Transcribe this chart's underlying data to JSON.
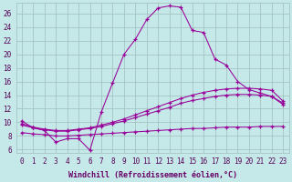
{
  "xlabel": "Windchill (Refroidissement éolien,°C)",
  "bg_color": "#c5e8e8",
  "grid_color": "#a0bcbc",
  "line_color": "#990099",
  "xlim": [
    -0.5,
    23.5
  ],
  "ylim": [
    5.5,
    27.5
  ],
  "xticks": [
    0,
    1,
    2,
    3,
    4,
    5,
    6,
    7,
    8,
    9,
    10,
    11,
    12,
    13,
    14,
    15,
    16,
    17,
    18,
    19,
    20,
    21,
    22,
    23
  ],
  "yticks": [
    6,
    8,
    10,
    12,
    14,
    16,
    18,
    20,
    22,
    24,
    26
  ],
  "curve1_x": [
    0,
    1,
    2,
    3,
    4,
    5,
    6,
    7,
    8,
    9,
    10,
    11,
    12,
    13,
    14,
    15,
    16,
    17,
    18,
    19,
    20,
    21,
    22,
    23
  ],
  "curve1_y": [
    10.2,
    9.2,
    8.8,
    7.1,
    7.6,
    7.6,
    5.9,
    11.5,
    15.8,
    20.0,
    22.2,
    25.1,
    26.8,
    27.1,
    26.9,
    23.5,
    23.2,
    19.3,
    18.4,
    16.0,
    14.8,
    14.3,
    13.8,
    12.8
  ],
  "curve2_x": [
    0,
    1,
    2,
    3,
    4,
    5,
    6,
    7,
    8,
    9,
    10,
    11,
    12,
    13,
    14,
    15,
    16,
    17,
    18,
    19,
    20,
    21,
    22,
    23
  ],
  "curve2_y": [
    9.8,
    9.3,
    9.0,
    8.8,
    8.8,
    9.0,
    9.2,
    9.6,
    10.0,
    10.5,
    11.1,
    11.7,
    12.3,
    12.9,
    13.5,
    14.0,
    14.4,
    14.7,
    14.9,
    15.0,
    15.0,
    14.9,
    14.7,
    13.1
  ],
  "curve3_x": [
    0,
    1,
    2,
    3,
    4,
    5,
    6,
    7,
    8,
    9,
    10,
    11,
    12,
    13,
    14,
    15,
    16,
    17,
    18,
    19,
    20,
    21,
    22,
    23
  ],
  "curve3_y": [
    9.6,
    9.2,
    8.9,
    8.7,
    8.7,
    8.9,
    9.1,
    9.4,
    9.8,
    10.2,
    10.7,
    11.2,
    11.7,
    12.2,
    12.8,
    13.2,
    13.5,
    13.8,
    14.0,
    14.1,
    14.1,
    14.0,
    13.8,
    12.6
  ],
  "curve4_x": [
    0,
    1,
    2,
    3,
    4,
    5,
    6,
    7,
    8,
    9,
    10,
    11,
    12,
    13,
    14,
    15,
    16,
    17,
    18,
    19,
    20,
    21,
    22,
    23
  ],
  "curve4_y": [
    8.5,
    8.3,
    8.2,
    8.0,
    8.0,
    8.1,
    8.2,
    8.3,
    8.4,
    8.5,
    8.6,
    8.7,
    8.8,
    8.9,
    9.0,
    9.1,
    9.1,
    9.2,
    9.3,
    9.3,
    9.3,
    9.4,
    9.4,
    9.4
  ],
  "tick_fontsize": 5.5,
  "label_fontsize": 6.0
}
